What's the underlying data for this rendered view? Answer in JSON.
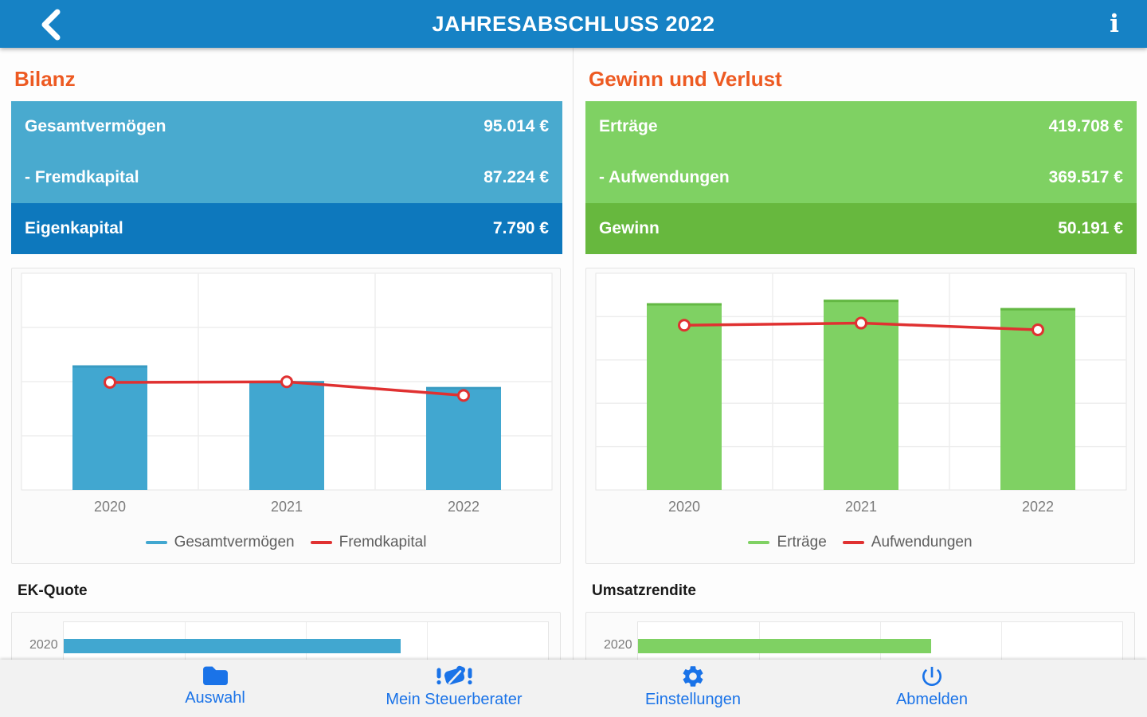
{
  "app_bar": {
    "title": "JAHRESABSCHLUSS 2022",
    "info_glyph": "i"
  },
  "colors": {
    "app_bar_blue": "#1682c5",
    "bilanz_light_blue": "#49aacf",
    "bilanz_dark_blue": "#0d78bd",
    "guv_light_green": "#7fd163",
    "guv_dark_green": "#67b83e",
    "heading_orange": "#ed5a22",
    "line_red": "#e03131",
    "nav_blue": "#1a73e8"
  },
  "panels": [
    {
      "heading": "Bilanz",
      "summary_rows": [
        {
          "label": "Gesamtvermögen",
          "value": "95.014 €",
          "emphasis": false
        },
        {
          "label": "- Fremdkapital",
          "value": "87.224 €",
          "emphasis": false
        },
        {
          "label": "Eigenkapital",
          "value": "7.790 €",
          "emphasis": true
        }
      ]
    },
    {
      "heading": "Gewinn und Verlust",
      "summary_rows": [
        {
          "label": "Erträge",
          "value": "419.708 €",
          "emphasis": false
        },
        {
          "label": "- Aufwendungen",
          "value": "369.517 €",
          "emphasis": false
        },
        {
          "label": "Gewinn",
          "value": "50.191 €",
          "emphasis": true
        }
      ]
    }
  ],
  "chart_data": [
    {
      "id": "bilanz-trend",
      "type": "bar",
      "subtype": "bar+line",
      "title": "",
      "categories": [
        "2020",
        "2021",
        "2022"
      ],
      "series": [
        {
          "name": "Gesamtvermögen",
          "kind": "bar",
          "color": "#41a7d0",
          "cap_color": "#399bc2",
          "values": [
            115000,
            100500,
            95014
          ]
        },
        {
          "name": "Fremdkapital",
          "kind": "line",
          "color": "#e03131",
          "values": [
            99300,
            99800,
            87224
          ]
        }
      ],
      "ylim": [
        0,
        200000
      ],
      "grid_interval": 50000,
      "grid": true,
      "legend_position": "bottom"
    },
    {
      "id": "guv-trend",
      "type": "bar",
      "subtype": "bar+line",
      "title": "",
      "categories": [
        "2020",
        "2021",
        "2022"
      ],
      "series": [
        {
          "name": "Erträge",
          "kind": "bar",
          "color": "#7fd163",
          "cap_color": "#63b843",
          "values": [
            431000,
            439000,
            419708
          ]
        },
        {
          "name": "Aufwendungen",
          "kind": "line",
          "color": "#e03131",
          "values": [
            380000,
            385000,
            369517
          ]
        }
      ],
      "ylim": [
        0,
        500000
      ],
      "grid_interval": 100000,
      "grid": true,
      "legend_position": "bottom"
    },
    {
      "id": "ek-quote",
      "type": "bar",
      "subtype": "bar-horizontal",
      "title": "EK-Quote",
      "categories": [
        "2020"
      ],
      "values": [
        13.9
      ],
      "unit": "%",
      "xlim": [
        0,
        20
      ],
      "grid_interval": 5,
      "grid": true,
      "color": "#41a7d0"
    },
    {
      "id": "umsatzrendite",
      "type": "bar",
      "subtype": "bar-horizontal",
      "title": "Umsatzrendite",
      "categories": [
        "2020"
      ],
      "values": [
        12.1
      ],
      "unit": "%",
      "xlim": [
        0,
        20
      ],
      "grid_interval": 5,
      "grid": true,
      "color": "#7fd163"
    }
  ],
  "bottom_nav": {
    "items": [
      {
        "label": "Auswahl",
        "icon": "folder-icon"
      },
      {
        "label": "Mein Steuerberater",
        "icon": "handshake-icon"
      },
      {
        "label": "Einstellungen",
        "icon": "gear-icon"
      },
      {
        "label": "Abmelden",
        "icon": "power-icon"
      }
    ]
  }
}
